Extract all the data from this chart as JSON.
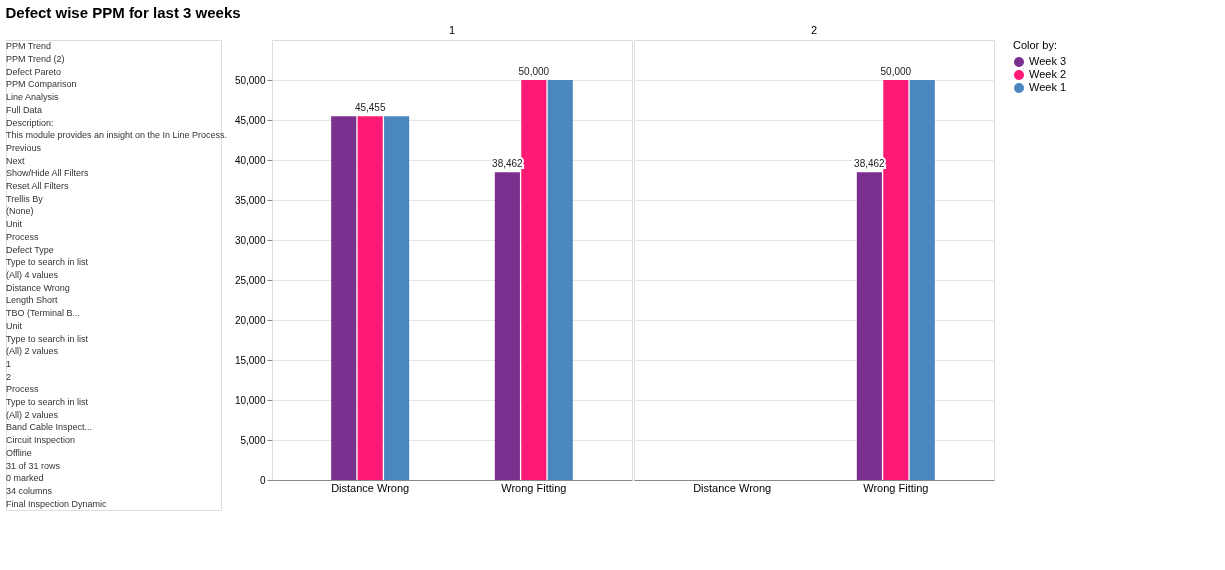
{
  "chart_data": [
    {
      "type": "other",
      "annotations": [
        "PPM Trend",
        "PPM Trend (2)",
        "Defect Pareto",
        "PPM Comparison",
        "Line Analysis",
        "Full Data",
        "Description:",
        "This module provides an insight on the In Line Process.",
        "Previous",
        "Next",
        "Show/Hide All Filters",
        "Reset All Filters",
        "Trellis By",
        "(None)",
        "Unit",
        "Process",
        "Defect Type",
        "Type to search in list",
        "(All) 4 values",
        "Distance Wrong",
        "Length Short",
        "TBO (Terminal B...",
        "Unit",
        "Type to search in list",
        "(All) 2 values",
        "1",
        "2",
        "Process",
        "Type to search in list",
        "(All) 2 values",
        "Band Cable Inspect...",
        "Circuit Inspection",
        "Offline",
        "31 of 31 rows",
        "0 marked",
        "34 columns",
        "Final Inspection Dynamic"
      ]
    },
    {
      "type": "bar",
      "title": "Defect wise PPM for last 3 weeks",
      "subtitle": "1",
      "categories": [
        "Distance Wrong",
        "Wrong Fitting"
      ],
      "series": [
        {
          "name": "Week 3",
          "color": "#7b2f8e",
          "values": [
            45455,
            38462
          ],
          "value_labels": [
            null,
            "38,462"
          ]
        },
        {
          "name": "Week 2",
          "color": "#ff1a75",
          "values": [
            45455,
            50000
          ],
          "value_labels": [
            "45,455",
            "50,000"
          ]
        },
        {
          "name": "Week 1",
          "color": "#4a86c0",
          "values": [
            45455,
            50000
          ],
          "value_labels": [
            null,
            null
          ]
        }
      ],
      "ylim": [
        0,
        55000
      ],
      "yticks": [
        0,
        {
          "value": 5000,
          "label": "5,000"
        },
        {
          "value": 10000,
          "label": "10,000"
        },
        {
          "value": 15000,
          "label": "15,000"
        },
        {
          "value": 20000,
          "label": "20,000"
        },
        {
          "value": 25000,
          "label": "25,000"
        },
        {
          "value": 30000,
          "label": "30,000"
        },
        {
          "value": 35000,
          "label": "35,000"
        },
        {
          "value": 40000,
          "label": "40,000"
        },
        {
          "value": 45000,
          "label": "45,000"
        },
        {
          "value": 50000,
          "label": "50,000"
        }
      ],
      "grid": "y",
      "legend": "right",
      "legend_title": "Color by:"
    },
    {
      "type": "bar",
      "subtitle": "2",
      "categories": [
        "Distance Wrong",
        "Wrong Fitting"
      ],
      "series": [
        {
          "name": "Week 3",
          "color": "#7b2f8e",
          "values": [
            null,
            38462
          ],
          "value_labels": [
            null,
            "38,462"
          ]
        },
        {
          "name": "Week 2",
          "color": "#ff1a75",
          "values": [
            null,
            50000
          ],
          "value_labels": [
            null,
            "50,000"
          ]
        },
        {
          "name": "Week 1",
          "color": "#4a86c0",
          "values": [
            null,
            50000
          ],
          "value_labels": [
            null,
            null
          ]
        }
      ],
      "ylim": [
        0,
        55000
      ],
      "yticks": [
        0,
        {
          "value": 5000,
          "label": "5,000"
        },
        {
          "value": 10000,
          "label": "10,000"
        },
        {
          "value": 15000,
          "label": "15,000"
        },
        {
          "value": 20000,
          "label": "20,000"
        },
        {
          "value": 25000,
          "label": "25,000"
        },
        {
          "value": 30000,
          "label": "30,000"
        },
        {
          "value": 35000,
          "label": "35,000"
        },
        {
          "value": 40000,
          "label": "40,000"
        },
        {
          "value": 45000,
          "label": "45,000"
        },
        {
          "value": 50000,
          "label": "50,000"
        }
      ],
      "grid": "y",
      "tick_labels": "x"
    }
  ]
}
